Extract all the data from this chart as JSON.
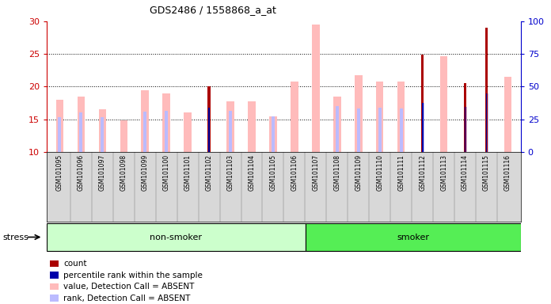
{
  "title": "GDS2486 / 1558868_a_at",
  "samples": [
    "GSM101095",
    "GSM101096",
    "GSM101097",
    "GSM101098",
    "GSM101099",
    "GSM101100",
    "GSM101101",
    "GSM101102",
    "GSM101103",
    "GSM101104",
    "GSM101105",
    "GSM101106",
    "GSM101107",
    "GSM101108",
    "GSM101109",
    "GSM101110",
    "GSM101111",
    "GSM101112",
    "GSM101113",
    "GSM101114",
    "GSM101115",
    "GSM101116"
  ],
  "value_absent": [
    18.0,
    18.5,
    16.5,
    14.8,
    19.5,
    19.0,
    16.1,
    null,
    17.8,
    17.8,
    15.5,
    20.8,
    29.5,
    18.5,
    21.7,
    20.8,
    20.8,
    null,
    24.6,
    null,
    null,
    21.5
  ],
  "rank_absent": [
    15.3,
    16.1,
    15.3,
    null,
    16.2,
    16.3,
    null,
    null,
    16.3,
    null,
    15.5,
    null,
    null,
    17.0,
    16.7,
    16.8,
    16.7,
    17.5,
    null,
    16.9,
    19.0,
    null
  ],
  "count": [
    null,
    null,
    null,
    null,
    null,
    null,
    null,
    20.0,
    null,
    null,
    null,
    null,
    null,
    null,
    null,
    null,
    null,
    24.9,
    null,
    20.5,
    29.0,
    null
  ],
  "percentile": [
    null,
    null,
    null,
    null,
    null,
    null,
    null,
    16.8,
    null,
    null,
    null,
    null,
    null,
    null,
    null,
    null,
    null,
    17.5,
    null,
    16.9,
    19.0,
    null
  ],
  "non_smoker_count": 12,
  "smoker_count": 10,
  "ylim_left": [
    10,
    30
  ],
  "ylim_right": [
    0,
    100
  ],
  "yticks_left": [
    10,
    15,
    20,
    25,
    30
  ],
  "yticks_right": [
    0,
    25,
    50,
    75,
    100
  ],
  "color_value_absent": "#ffbbbb",
  "color_rank_absent": "#bbbbff",
  "color_count": "#aa0000",
  "color_percentile": "#0000aa",
  "color_nonsmoker_bg": "#ccffcc",
  "color_smoker_bg": "#55ee55",
  "color_left_axis": "#cc0000",
  "color_right_axis": "#0000cc",
  "color_gray_bg": "#d8d8d8"
}
